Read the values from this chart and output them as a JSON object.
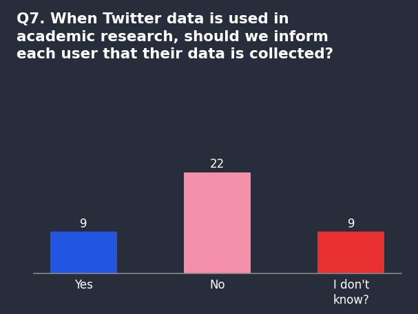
{
  "title_line1": "Q7. When Twitter data is used in",
  "title_line2": "academic research, should we inform",
  "title_line3": "each user that their data is collected?",
  "categories": [
    "Yes",
    "No",
    "I don't\nknow?"
  ],
  "values": [
    9,
    22,
    9
  ],
  "bar_colors": [
    "#2255e0",
    "#f490aa",
    "#e83030"
  ],
  "background_color": "#272d3b",
  "text_color": "#ffffff",
  "title_fontsize": 15.5,
  "label_fontsize": 12,
  "value_fontsize": 12,
  "ylim": [
    0,
    26
  ],
  "bar_width": 0.5
}
